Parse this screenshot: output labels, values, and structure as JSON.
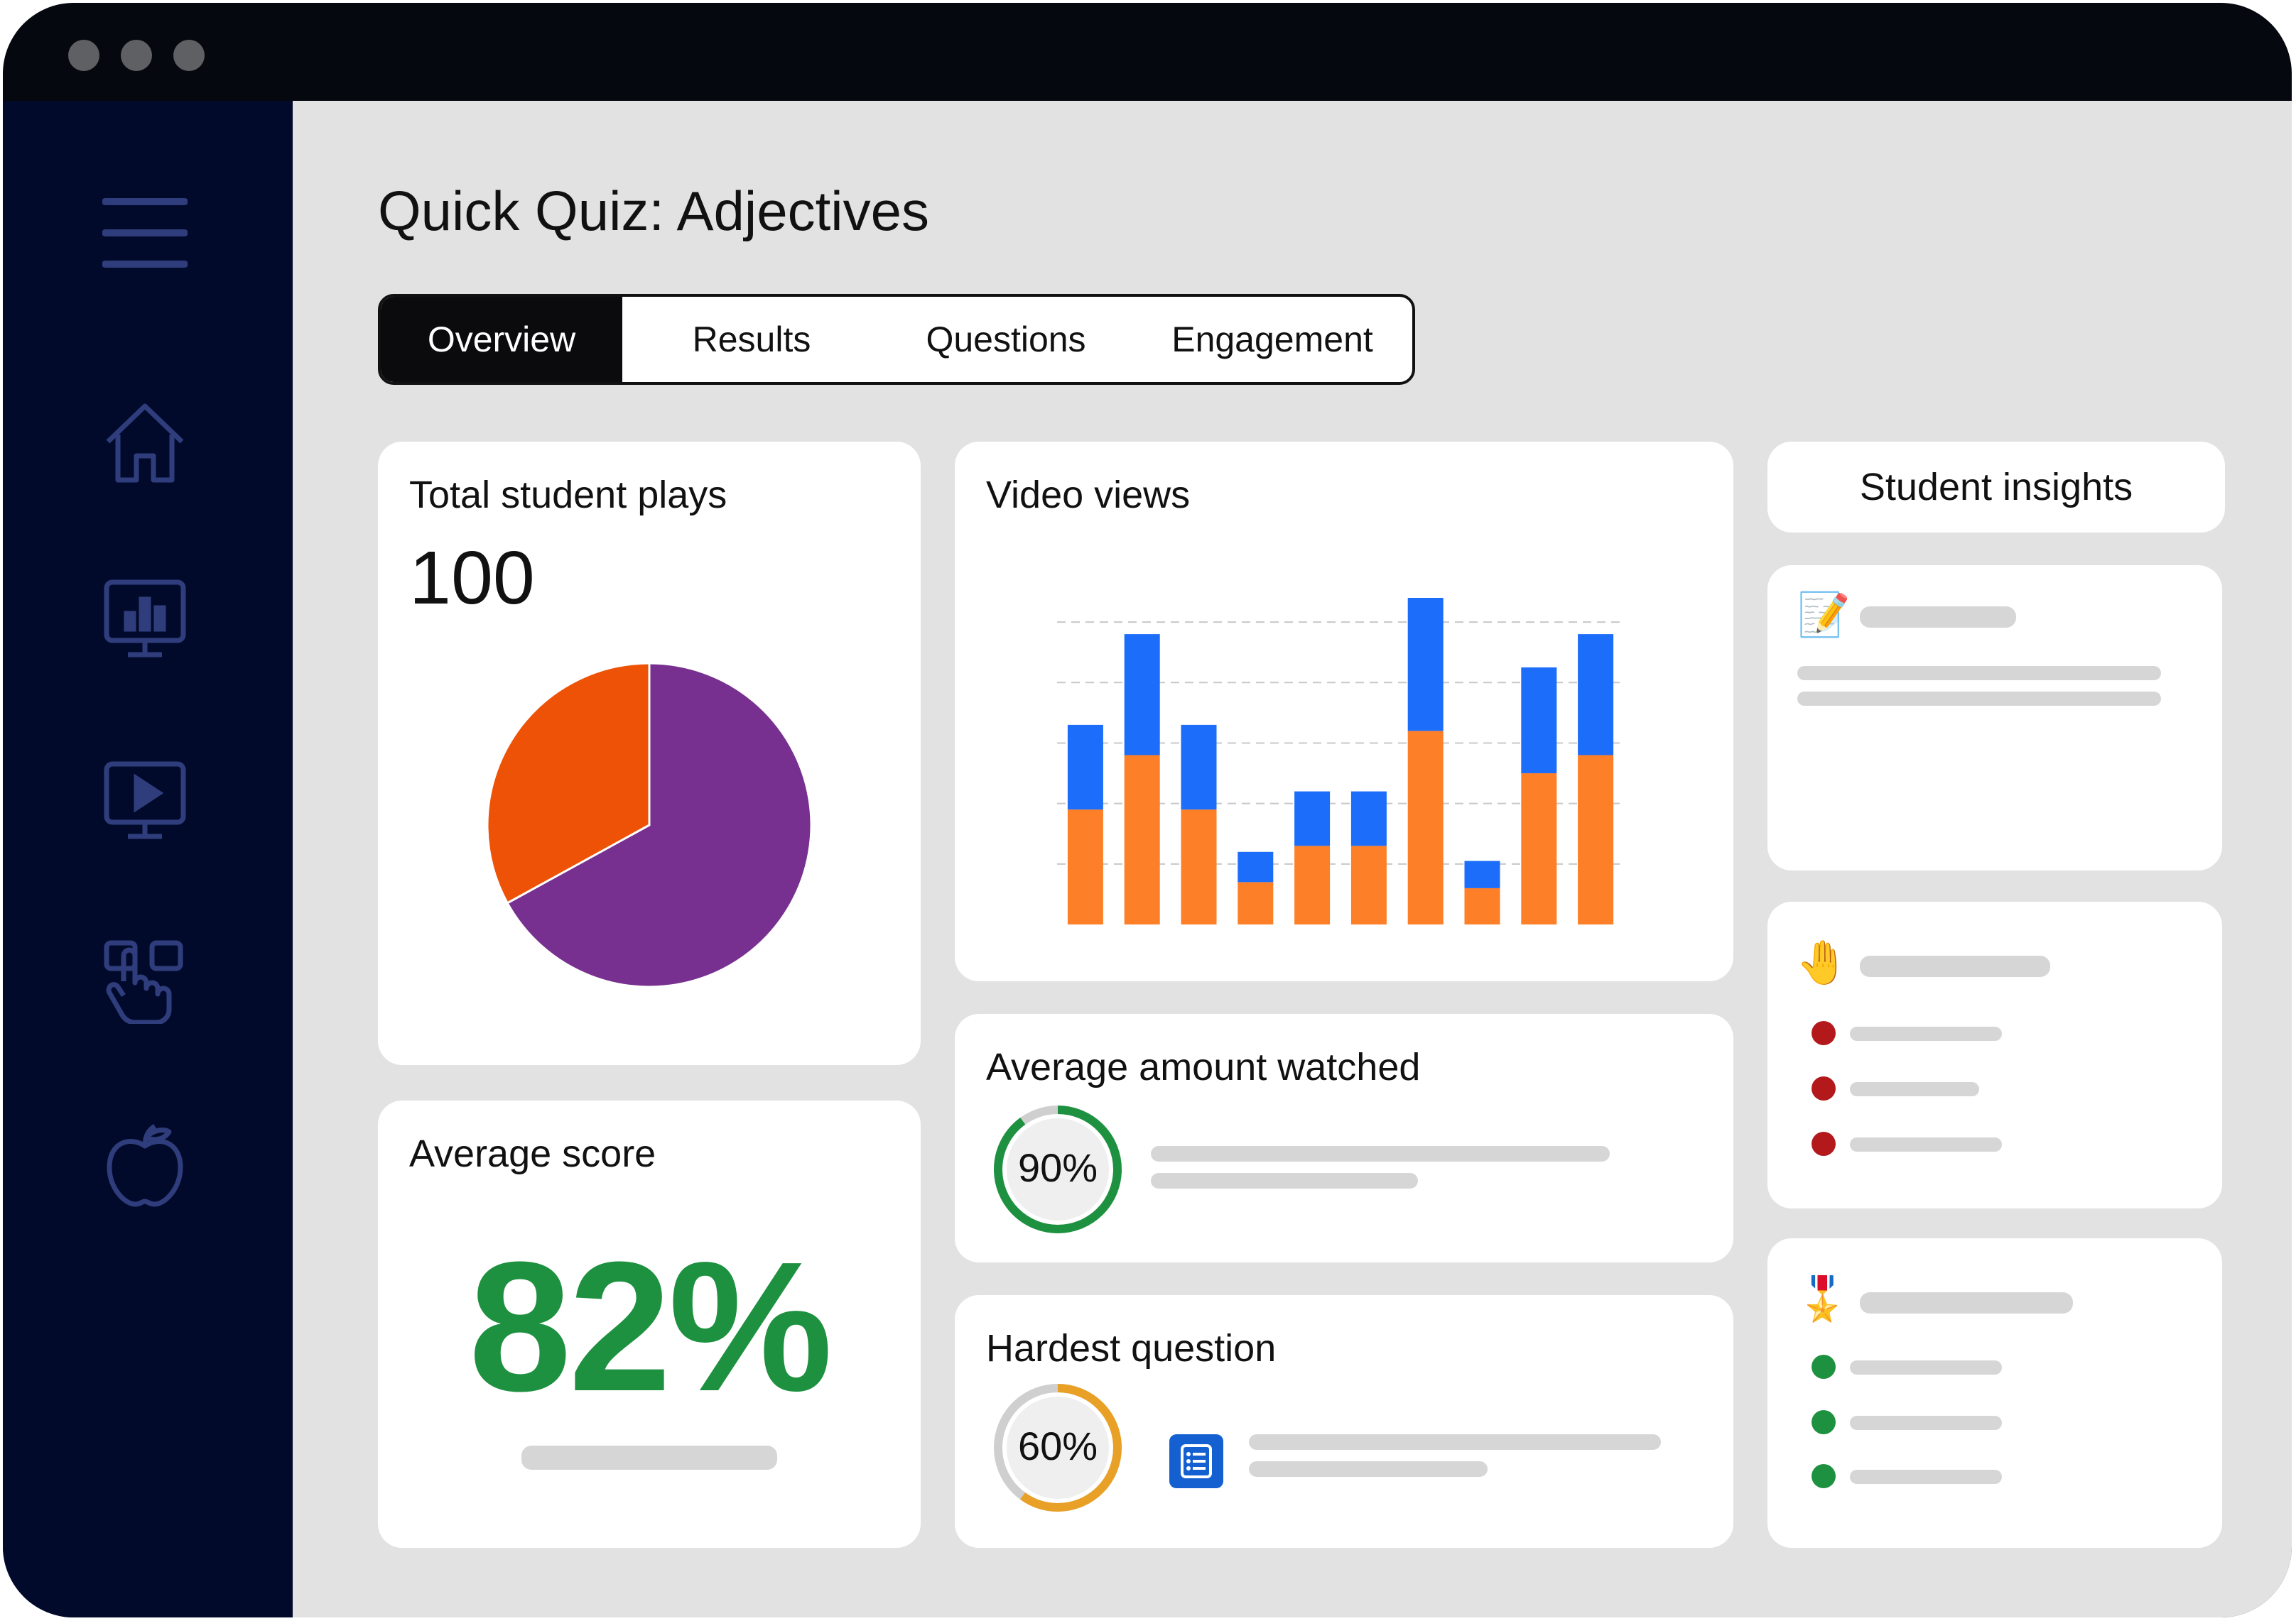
{
  "page": {
    "title": "Quick Quiz: Adjectives",
    "tabs": [
      "Overview",
      "Results",
      "Questions",
      "Engagement"
    ],
    "active_tab": "Overview"
  },
  "sidebar": {
    "icons": [
      "menu-icon",
      "home-icon",
      "reports-icon",
      "video-icon",
      "interactive-icon",
      "apple-icon"
    ]
  },
  "total_plays": {
    "title": "Total student plays",
    "value": "100",
    "chart_data": {
      "type": "pie",
      "slices": [
        {
          "value": 67,
          "color": "#77308f"
        },
        {
          "value": 33,
          "color": "#ee5207"
        }
      ]
    }
  },
  "average_score": {
    "title": "Average score",
    "value": "82%",
    "color": "#1e9140"
  },
  "video_views": {
    "title": "Video views",
    "chart_data": {
      "type": "bar",
      "stacked": true,
      "ylim": [
        0,
        5.4
      ],
      "gridlines": [
        1,
        2,
        3,
        4,
        5
      ],
      "categories": [
        "",
        "",
        "",
        "",
        "",
        "",
        "",
        "",
        "",
        ""
      ],
      "series": [
        {
          "color": "#fd7f27",
          "values": [
            1.9,
            2.8,
            1.9,
            0.7,
            1.3,
            1.3,
            3.2,
            0.6,
            2.5,
            2.8
          ]
        },
        {
          "color": "#1b6dfa",
          "values": [
            1.4,
            2.0,
            1.4,
            0.5,
            0.9,
            0.9,
            2.2,
            0.45,
            1.75,
            2.0
          ]
        }
      ]
    }
  },
  "average_watched": {
    "title": "Average amount watched",
    "value": "90%",
    "progress": 0.9,
    "color": "#1e9140"
  },
  "hardest_question": {
    "title": "Hardest question",
    "value": "60%",
    "progress": 0.6,
    "color": "#e9a026",
    "icon": "list-icon"
  },
  "student_insights": {
    "title": "Student insights",
    "cards": [
      {
        "icon": "memo-icon",
        "emoji": "📝"
      },
      {
        "icon": "raised-hand-icon",
        "emoji": "🤚",
        "bullet_color": "#b3191b"
      },
      {
        "icon": "medal-icon",
        "emoji": "🎖️",
        "bullet_color": "#1e9140"
      }
    ]
  }
}
